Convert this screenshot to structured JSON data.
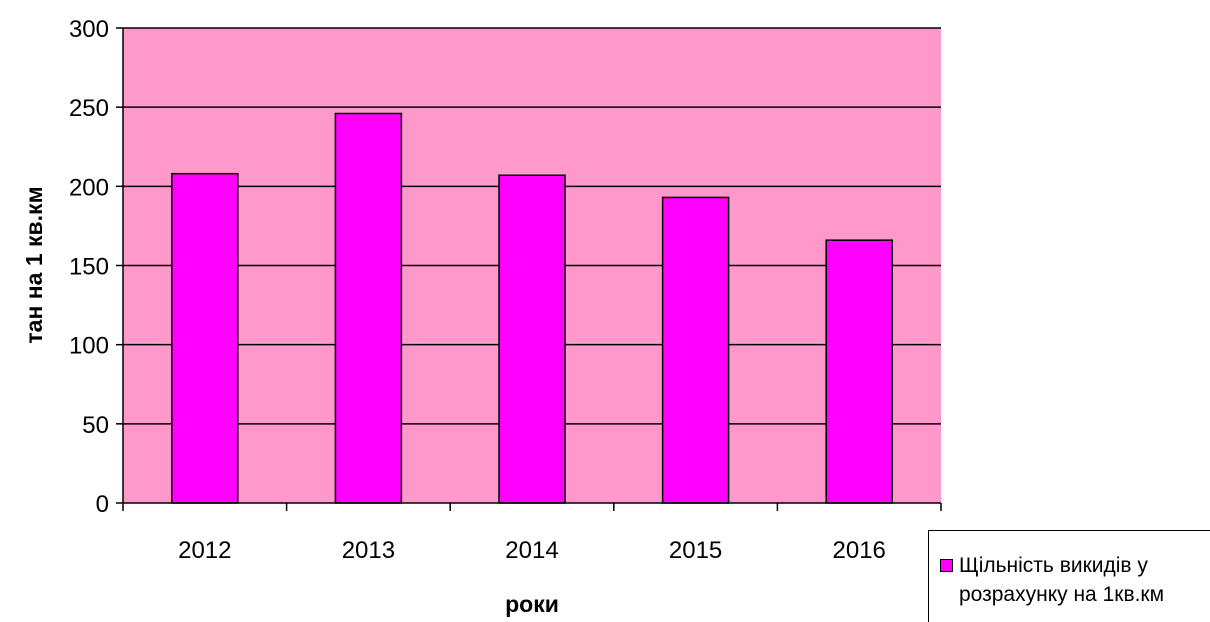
{
  "chart_data": {
    "type": "bar",
    "categories": [
      "2012",
      "2013",
      "2014",
      "2015",
      "2016"
    ],
    "series": [
      {
        "name": "Щільність викидів у розрахунку на 1кв.км",
        "values": [
          208,
          246,
          207,
          193,
          166
        ]
      }
    ],
    "xlabel": "роки",
    "ylabel": "тан на 1 кв.км",
    "ylim": [
      0,
      300
    ],
    "yticks": [
      0,
      50,
      100,
      150,
      200,
      250,
      300
    ],
    "grid": true,
    "legend_position": "bottom-right",
    "colors": {
      "plot_background": "#ff99cc",
      "bar_fill": "#ff00ff",
      "gridline": "#000000"
    }
  }
}
